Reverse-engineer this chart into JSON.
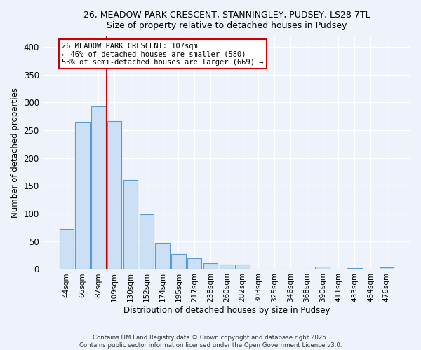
{
  "title_line1": "26, MEADOW PARK CRESCENT, STANNINGLEY, PUDSEY, LS28 7TL",
  "title_line2": "Size of property relative to detached houses in Pudsey",
  "xlabel": "Distribution of detached houses by size in Pudsey",
  "ylabel": "Number of detached properties",
  "bar_labels": [
    "44sqm",
    "66sqm",
    "87sqm",
    "109sqm",
    "130sqm",
    "152sqm",
    "174sqm",
    "195sqm",
    "217sqm",
    "238sqm",
    "260sqm",
    "282sqm",
    "303sqm",
    "325sqm",
    "346sqm",
    "368sqm",
    "390sqm",
    "411sqm",
    "433sqm",
    "454sqm",
    "476sqm"
  ],
  "bar_values": [
    72,
    265,
    293,
    267,
    160,
    99,
    47,
    27,
    19,
    11,
    8,
    8,
    0,
    0,
    0,
    0,
    4,
    1,
    2,
    1,
    3
  ],
  "bar_color": "#cce0f5",
  "bar_edge_color": "#5b9bd5",
  "vline_color": "#cc0000",
  "annotation_title": "26 MEADOW PARK CRESCENT: 107sqm",
  "annotation_line1": "← 46% of detached houses are smaller (580)",
  "annotation_line2": "53% of semi-detached houses are larger (669) →",
  "annotation_box_color": "#ffffff",
  "annotation_box_edge": "#cc0000",
  "ylim": [
    0,
    420
  ],
  "yticks": [
    0,
    50,
    100,
    150,
    200,
    250,
    300,
    350,
    400
  ],
  "footer_line1": "Contains HM Land Registry data © Crown copyright and database right 2025.",
  "footer_line2": "Contains public sector information licensed under the Open Government Licence v3.0.",
  "background_color": "#eef2fa",
  "grid_color": "#ffffff"
}
